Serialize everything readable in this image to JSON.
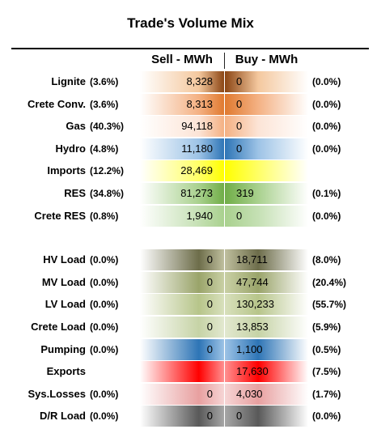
{
  "title": "Trade's Volume Mix",
  "headers": {
    "sell": "Sell - MWh",
    "buy": "Buy - MWh"
  },
  "chart_data": {
    "type": "table",
    "title": "Trade's Volume Mix",
    "columns": [
      "Sell - MWh",
      "Buy - MWh"
    ],
    "rows": [
      {
        "label": "Lignite",
        "sell_pct": "(3.6%)",
        "sell": "8,328",
        "buy": "0",
        "buy_pct": "(0.0%)",
        "sell_color": "#f4c89e",
        "buy_color": "#8b4513"
      },
      {
        "label": "Crete Conv.",
        "sell_pct": "(3.6%)",
        "sell": "8,313",
        "buy": "0",
        "buy_pct": "(0.0%)",
        "sell_color": "#f4b183",
        "buy_color": "#e07a30"
      },
      {
        "label": "Gas",
        "sell_pct": "(40.3%)",
        "sell": "94,118",
        "buy": "0",
        "buy_pct": "(0.0%)",
        "sell_color": "#fce4d6",
        "buy_color": "#f4b183"
      },
      {
        "label": "Hydro",
        "sell_pct": "(4.8%)",
        "sell": "11,180",
        "buy": "0",
        "buy_pct": "(0.0%)",
        "sell_color": "#9dc3e6",
        "buy_color": "#2e75b6"
      },
      {
        "label": "Imports",
        "sell_pct": "(12.2%)",
        "sell": "28,469",
        "buy": "",
        "buy_pct": "",
        "sell_color": "#ffff66",
        "buy_color": "#ffff00"
      },
      {
        "label": "RES",
        "sell_pct": "(34.8%)",
        "sell": "81,273",
        "buy": "319",
        "buy_pct": "(0.1%)",
        "sell_color": "#a9d18e",
        "buy_color": "#70ad47"
      },
      {
        "label": "Crete RES",
        "sell_pct": "(0.8%)",
        "sell": "1,940",
        "buy": "0",
        "buy_pct": "(0.0%)",
        "sell_color": "#c5e0b4",
        "buy_color": "#a9d18e"
      },
      {
        "label": "HV Load",
        "sell_pct": "(0.0%)",
        "sell": "0",
        "buy": "18,711",
        "buy_pct": "(8.0%)",
        "sell_color": "#6d6d4a",
        "buy_color": "#bfbf9e"
      },
      {
        "label": "MV Load",
        "sell_pct": "(0.0%)",
        "sell": "0",
        "buy": "47,744",
        "buy_pct": "(20.4%)",
        "sell_color": "#9aa46a",
        "buy_color": "#c9d0a5"
      },
      {
        "label": "LV Load",
        "sell_pct": "(0.0%)",
        "sell": "0",
        "buy": "130,233",
        "buy_pct": "(55.7%)",
        "sell_color": "#b7c58a",
        "buy_color": "#d8e0bc"
      },
      {
        "label": "Crete Load",
        "sell_pct": "(0.0%)",
        "sell": "0",
        "buy": "13,853",
        "buy_pct": "(5.9%)",
        "sell_color": "#c6d3a6",
        "buy_color": "#e2e8cf"
      },
      {
        "label": "Pumping",
        "sell_pct": "(0.0%)",
        "sell": "0",
        "buy": "1,100",
        "buy_pct": "(0.5%)",
        "sell_color": "#2e75b6",
        "buy_color": "#9dc3e6"
      },
      {
        "label": "Exports",
        "sell_pct": "",
        "sell": "",
        "buy": "17,630",
        "buy_pct": "(7.5%)",
        "sell_color": "#ff0000",
        "buy_color": "#ff9090"
      },
      {
        "label": "Sys.Losses",
        "sell_pct": "(0.0%)",
        "sell": "0",
        "buy": "4,030",
        "buy_pct": "(1.7%)",
        "sell_color": "#e8a0a0",
        "buy_color": "#f6d5d5"
      },
      {
        "label": "D/R Load",
        "sell_pct": "(0.0%)",
        "sell": "0",
        "buy": "0",
        "buy_pct": "(0.0%)",
        "sell_color": "#595959",
        "buy_color": "#a6a6a6"
      }
    ]
  }
}
